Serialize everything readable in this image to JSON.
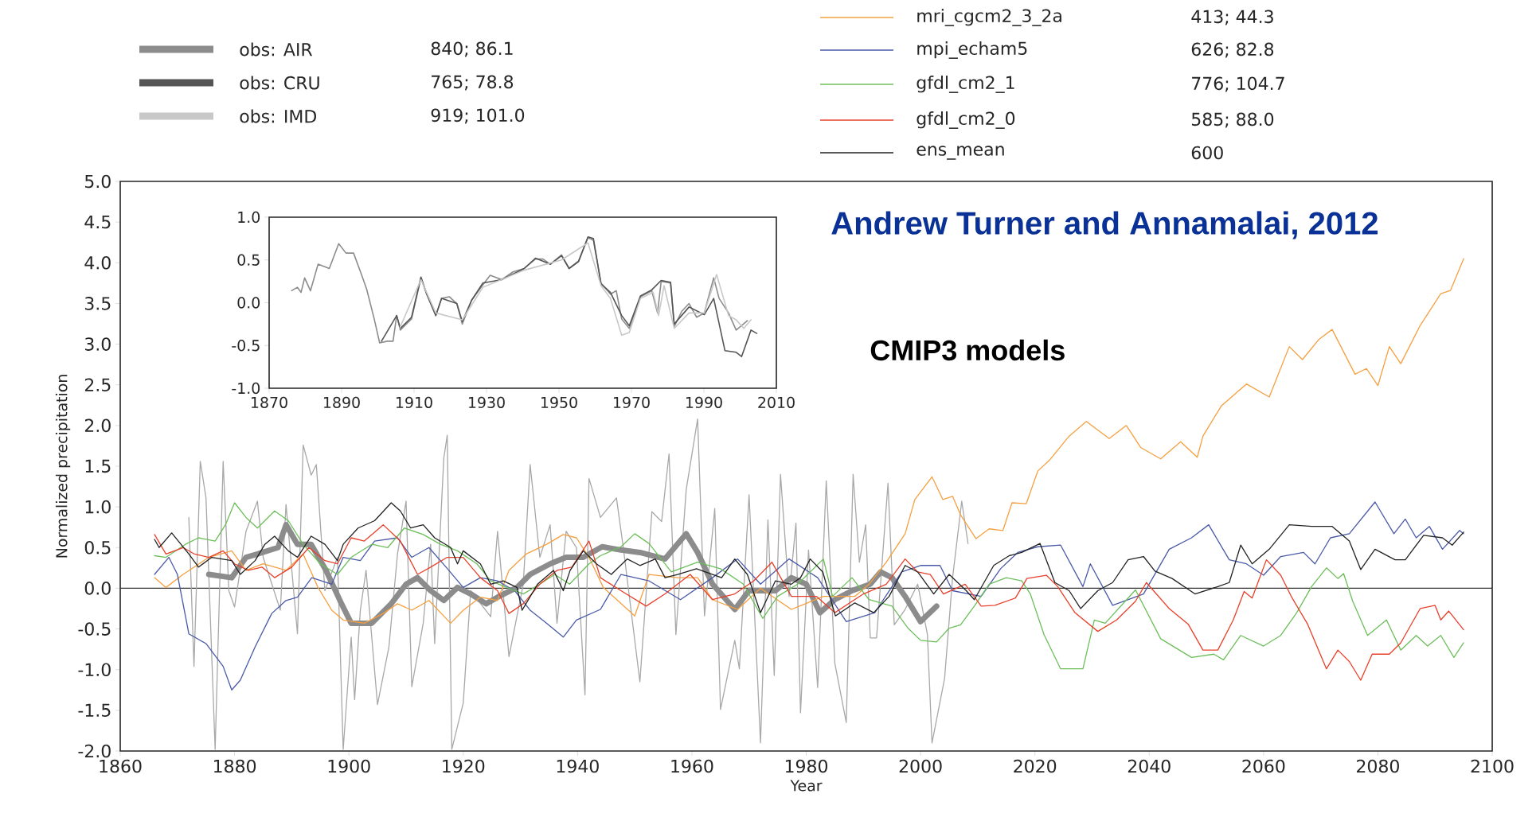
{
  "chart_data": [
    {
      "type": "line",
      "xlabel": "Year",
      "ylabel": "Normalized precipitation",
      "xlim": [
        1860,
        2100
      ],
      "ylim": [
        -2,
        5
      ],
      "xticks": [
        1860,
        1880,
        1900,
        1920,
        1940,
        1960,
        1980,
        2000,
        2020,
        2040,
        2060,
        2080,
        2100
      ],
      "yticks": [
        {
          "value": -2,
          "label": "-2.0"
        },
        {
          "value": -1.5,
          "label": "-1.5"
        },
        {
          "value": -1,
          "label": "-1.0"
        },
        {
          "value": -0.5,
          "label": "-0.5"
        },
        {
          "value": 0,
          "label": "0.0"
        },
        {
          "value": 0.5,
          "label": "0.5"
        },
        {
          "value": 1,
          "label": "1.0"
        },
        {
          "value": 1.5,
          "label": "1.5"
        },
        {
          "value": 2,
          "label": "2.0"
        },
        {
          "value": 2.5,
          "label": "2.5"
        },
        {
          "value": 3,
          "label": "3.0"
        },
        {
          "value": 3.5,
          "label": "3.5"
        },
        {
          "value": 4,
          "label": "4.0"
        },
        {
          "value": 4.5,
          "label": "4.5"
        },
        {
          "value": 5,
          "label": "5.0"
        }
      ],
      "legend": "top",
      "ref_lines": [
        {
          "axis": "y",
          "value": 0,
          "color": "#333333"
        }
      ],
      "annotations": [
        "Andrew Turner and Annamalai, 2012",
        "CMIP3 models",
        "413;  44.3",
        "626;  82.8",
        "776;  104.7",
        "585;  88.0",
        "600"
      ],
      "series": [
        {
          "color": "#a8a8a8",
          "x": [
            1872,
            1872.9,
            1874,
            1875,
            1876.6,
            1878,
            1879,
            1880,
            1882,
            1884,
            1885,
            1888,
            1889,
            1891,
            1892,
            1893.4,
            1894.3,
            1895.8,
            1898,
            1899,
            1900.4,
            1901,
            1902,
            1903,
            1905,
            1907,
            1908.5,
            1910,
            1911,
            1913,
            1914.3,
            1915,
            1916.6,
            1917.2,
            1918,
            1920,
            1921.3,
            1924.8,
            1926,
            1928,
            1930.5,
            1931.7,
            1933.4,
            1935.2,
            1936.4,
            1938,
            1939.8,
            1941.3,
            1942,
            1944,
            1946.8,
            1948,
            1950.9,
            1953,
            1954.7,
            1956,
            1957.2,
            1959,
            1961,
            1962.2,
            1964,
            1965,
            1967.5,
            1968.3,
            1970,
            1972,
            1973.3,
            1974.4,
            1975.5,
            1977,
            1978.2,
            1979,
            1980.4,
            1982,
            1983.5,
            1985,
            1987,
            1988.2,
            1989.3,
            1990.4,
            1991.2,
            1992.3,
            1994.3,
            1995.4,
            1997.3,
            1999.5,
            2001.2,
            2002,
            2004.2,
            2005.6,
            2007.2,
            2008.3
          ],
          "values": [
            0.87,
            -0.96,
            1.56,
            1.11,
            -1.98,
            1.56,
            -0.03,
            -0.23,
            0.7,
            1.07,
            0.38,
            -0.27,
            1.03,
            -0.56,
            1.76,
            1.39,
            1.52,
            -0.03,
            0.38,
            -1.98,
            -0.6,
            -1.37,
            -0.27,
            0.22,
            -1.43,
            -0.72,
            0.42,
            1.07,
            -1.21,
            -0.43,
            0.54,
            -0.68,
            1.6,
            1.88,
            -1.98,
            -1.41,
            -0.03,
            -0.35,
            0.7,
            -0.84,
            0.05,
            1.52,
            0.38,
            0.78,
            -0.43,
            0.7,
            0.5,
            -1.31,
            1.35,
            0.87,
            1.11,
            0.5,
            -1.15,
            0.94,
            0.82,
            1.65,
            -0.57,
            1.21,
            2.08,
            -0.34,
            0.98,
            -1.49,
            -0.64,
            -0.99,
            1.15,
            -1.9,
            0.84,
            -1.07,
            1.4,
            -0.1,
            0.8,
            -1.53,
            0.47,
            -1.22,
            1.32,
            -0.92,
            -1.65,
            1.4,
            0.32,
            0.78,
            -0.61,
            -0.61,
            1.29,
            -0.45,
            -0.26,
            0.05,
            -0.57,
            -1.9,
            -1.11,
            0.13,
            1.07,
            0.55
          ]
        },
        {
          "color": "#8c8c8c",
          "x": [
            1875.5,
            1879.5,
            1882,
            1884,
            1887.6,
            1889,
            1891,
            1893.4,
            1896,
            1898.7,
            1900.4,
            1904,
            1907.4,
            1910,
            1912,
            1914.3,
            1916.6,
            1919,
            1921.3,
            1924,
            1926,
            1929.4,
            1931.7,
            1935.2,
            1938,
            1941,
            1944.3,
            1947.6,
            1950.9,
            1955.3,
            1959,
            1961,
            1963.6,
            1967.5,
            1970,
            1974.6,
            1977.4,
            1980,
            1982.4,
            1985,
            1988,
            1991.2,
            1993,
            1995,
            1997.3,
            2000,
            2002.8
          ],
          "values": [
            0.17,
            0.13,
            0.38,
            0.42,
            0.5,
            0.78,
            0.54,
            0.54,
            0.22,
            -0.19,
            -0.43,
            -0.43,
            -0.19,
            0.05,
            0.13,
            -0.03,
            -0.15,
            0.01,
            -0.07,
            -0.19,
            -0.11,
            0.01,
            0.17,
            0.3,
            0.38,
            0.38,
            0.51,
            0.47,
            0.44,
            0.36,
            0.67,
            0.44,
            0.05,
            -0.26,
            -0.03,
            -0.03,
            0.13,
            0.05,
            -0.3,
            -0.14,
            -0.03,
            0.05,
            0.2,
            0.13,
            -0.1,
            -0.41,
            -0.22
          ]
        },
        {
          "name": "mri_cgcm2_3_2a",
          "color": "#f5a040",
          "x": [
            1866,
            1868,
            1871,
            1875.5,
            1879.5,
            1882,
            1885,
            1889,
            1892,
            1894.6,
            1897,
            1899,
            1902.7,
            1906,
            1908.5,
            1911,
            1914,
            1917.8,
            1920,
            1923,
            1926,
            1928,
            1931,
            1934.6,
            1937.5,
            1939.8,
            1942,
            1944.5,
            1950,
            1952.5,
            1957.5,
            1961,
            1963.6,
            1968,
            1972,
            1977.4,
            1983,
            1988.5,
            1991,
            1994,
            1997.3,
            1999,
            2002,
            2003.9,
            2005.6,
            2007,
            2009.7,
            2012,
            2014.4,
            2016,
            2018.5,
            2020.5,
            2022.5,
            2026,
            2029,
            2033,
            2036,
            2038.5,
            2042,
            2045.5,
            2048.4,
            2049.4,
            2052.6,
            2057,
            2061,
            2064.5,
            2066.8,
            2069.7,
            2072,
            2076,
            2078,
            2080,
            2082,
            2084,
            2087.4,
            2091,
            2092.7,
            2095
          ],
          "values": [
            0.13,
            0.01,
            0.17,
            0.38,
            0.46,
            0.22,
            0.3,
            0.22,
            0.42,
            0.01,
            -0.27,
            -0.39,
            -0.43,
            -0.31,
            -0.19,
            -0.27,
            -0.15,
            -0.43,
            -0.27,
            -0.11,
            -0.15,
            0.22,
            0.42,
            0.54,
            0.66,
            0.62,
            0.38,
            0.01,
            -0.34,
            0.17,
            0.13,
            0.13,
            -0.14,
            -0.26,
            0.0,
            -0.26,
            -0.1,
            -0.1,
            0.05,
            0.32,
            0.67,
            1.09,
            1.37,
            1.09,
            1.13,
            0.9,
            0.61,
            0.73,
            0.71,
            1.05,
            1.04,
            1.44,
            1.57,
            1.87,
            2.05,
            1.84,
            2.0,
            1.73,
            1.59,
            1.8,
            1.61,
            1.87,
            2.24,
            2.51,
            2.35,
            2.97,
            2.81,
            3.06,
            3.18,
            2.63,
            2.7,
            2.49,
            2.97,
            2.76,
            3.23,
            3.62,
            3.66,
            4.05
          ]
        },
        {
          "name": "mpi_echam5",
          "color": "#4a5aa8",
          "x": [
            1866,
            1868.5,
            1870,
            1872,
            1875,
            1878,
            1879.5,
            1881,
            1883.6,
            1886.5,
            1889,
            1891,
            1893.5,
            1897,
            1899,
            1902,
            1904.5,
            1908.5,
            1911,
            1914,
            1917,
            1920,
            1923,
            1926,
            1929,
            1931.7,
            1934.6,
            1937.5,
            1939.8,
            1944,
            1947.6,
            1952.5,
            1958,
            1963.6,
            1968,
            1972,
            1977,
            1982,
            1987,
            1992,
            1996.7,
            2000,
            2003.4,
            2005.6,
            2010.6,
            2014,
            2017,
            2020.5,
            2024.5,
            2028.4,
            2029.7,
            2033.6,
            2039,
            2043.5,
            2047.4,
            2050.4,
            2054,
            2057,
            2060,
            2063,
            2067,
            2069,
            2071.7,
            2075,
            2079.5,
            2082.8,
            2084.8,
            2086.7,
            2089,
            2091.3,
            2094.3,
            2095
          ],
          "values": [
            0.17,
            0.38,
            0.17,
            -0.56,
            -0.68,
            -0.96,
            -1.25,
            -1.13,
            -0.72,
            -0.31,
            -0.15,
            -0.11,
            0.13,
            0.05,
            0.38,
            0.34,
            0.58,
            0.62,
            0.38,
            0.5,
            0.26,
            0.01,
            0.13,
            0.09,
            -0.03,
            -0.27,
            -0.43,
            -0.6,
            -0.39,
            -0.26,
            0.17,
            0.09,
            -0.14,
            0.13,
            0.36,
            0.05,
            0.36,
            0.13,
            -0.41,
            -0.3,
            0.2,
            0.28,
            0.28,
            -0.03,
            -0.1,
            0.24,
            0.44,
            0.51,
            0.53,
            0.02,
            0.3,
            -0.21,
            -0.07,
            0.48,
            0.62,
            0.78,
            0.35,
            0.3,
            0.16,
            0.39,
            0.44,
            0.3,
            0.62,
            0.67,
            1.06,
            0.67,
            0.85,
            0.62,
            0.76,
            0.48,
            0.71,
            0.67
          ]
        },
        {
          "name": "gfdl_cm2_1",
          "color": "#6cbf5a",
          "x": [
            1866,
            1868,
            1871.4,
            1873.7,
            1876.6,
            1878.4,
            1880,
            1882,
            1884,
            1887,
            1889.4,
            1892,
            1895,
            1898,
            1900.4,
            1904,
            1906.8,
            1909.7,
            1913,
            1916,
            1919,
            1922.4,
            1924.8,
            1927.6,
            1930.5,
            1933.4,
            1936,
            1938.6,
            1942,
            1944,
            1947.6,
            1950,
            1952.5,
            1956.4,
            1961,
            1965,
            1969,
            1972.4,
            1975,
            1978.5,
            1983,
            1984.6,
            1988,
            1991,
            1995,
            1997.8,
            2000,
            2002.8,
            2005,
            2007,
            2009.4,
            2012,
            2015,
            2017.7,
            2019.2,
            2021.6,
            2024.5,
            2028.4,
            2030.4,
            2032.3,
            2037.6,
            2042,
            2047.4,
            2051.3,
            2053,
            2056,
            2060,
            2063,
            2065.8,
            2068.4,
            2071,
            2073,
            2074,
            2075.6,
            2078.2,
            2081.5,
            2084,
            2086.7,
            2088.7,
            2091,
            2093.3,
            2095
          ],
          "values": [
            0.4,
            0.38,
            0.54,
            0.62,
            0.58,
            0.78,
            1.05,
            0.87,
            0.74,
            0.95,
            0.83,
            0.54,
            0.3,
            0.17,
            0.38,
            0.54,
            0.5,
            0.74,
            0.66,
            0.54,
            0.46,
            0.3,
            0.09,
            0.01,
            -0.07,
            0.05,
            0.17,
            0.05,
            0.3,
            0.4,
            0.51,
            0.67,
            0.55,
            0.2,
            0.32,
            0.24,
            0.05,
            -0.37,
            -0.1,
            0.05,
            0.36,
            -0.1,
            0.13,
            -0.14,
            -0.22,
            -0.49,
            -0.64,
            -0.66,
            -0.49,
            -0.45,
            -0.22,
            0.05,
            0.13,
            0.09,
            -0.07,
            -0.57,
            -0.99,
            -0.99,
            -0.39,
            -0.43,
            -0.02,
            -0.62,
            -0.85,
            -0.81,
            -0.88,
            -0.58,
            -0.71,
            -0.58,
            -0.3,
            0.02,
            0.25,
            0.12,
            0.18,
            -0.16,
            -0.58,
            -0.39,
            -0.76,
            -0.58,
            -0.71,
            -0.58,
            -0.85,
            -0.67
          ]
        },
        {
          "name": "gfdl_cm2_0",
          "color": "#e8402a",
          "x": [
            1866,
            1868,
            1871,
            1873,
            1875.5,
            1878,
            1880,
            1882.4,
            1884.8,
            1887,
            1890,
            1893,
            1895.8,
            1898,
            1900.4,
            1902.7,
            1906,
            1909,
            1912,
            1914.3,
            1917.2,
            1920,
            1923,
            1926,
            1928,
            1930.5,
            1933.4,
            1936.4,
            1939,
            1942,
            1944,
            1947.6,
            1952,
            1955.3,
            1959.7,
            1963.6,
            1967.5,
            1970.8,
            1974,
            1977.4,
            1981.8,
            1985,
            1990,
            1994,
            1997.3,
            1999.5,
            2001.7,
            2004,
            2007.8,
            2010.6,
            2013,
            2016.6,
            2018.6,
            2022,
            2024,
            2027,
            2031,
            2034.3,
            2037.6,
            2039.5,
            2043.5,
            2046.8,
            2049.4,
            2052,
            2054.7,
            2056.6,
            2058,
            2060.5,
            2063,
            2065,
            2067.7,
            2071,
            2073,
            2075,
            2077,
            2079,
            2082,
            2084,
            2087.4,
            2090,
            2091,
            2092.4,
            2095
          ],
          "values": [
            0.66,
            0.42,
            0.5,
            0.42,
            0.38,
            0.46,
            0.3,
            0.22,
            0.26,
            0.13,
            0.26,
            0.5,
            0.34,
            0.3,
            0.62,
            0.58,
            0.78,
            0.58,
            0.17,
            0.26,
            0.38,
            0.38,
            0.13,
            -0.03,
            -0.31,
            -0.19,
            0.05,
            0.22,
            0.26,
            0.58,
            0.13,
            -0.03,
            -0.22,
            -0.07,
            0.17,
            -0.14,
            -0.07,
            0.09,
            0.32,
            -0.1,
            -0.1,
            -0.3,
            -0.07,
            0.05,
            0.36,
            0.2,
            0.17,
            -0.07,
            0.05,
            -0.22,
            -0.21,
            -0.12,
            0.12,
            0.16,
            0.02,
            -0.3,
            -0.53,
            -0.39,
            -0.16,
            0.07,
            -0.25,
            -0.44,
            -0.76,
            -0.76,
            -0.39,
            -0.04,
            -0.12,
            0.35,
            0.16,
            -0.12,
            -0.44,
            -0.99,
            -0.76,
            -0.9,
            -1.13,
            -0.81,
            -0.81,
            -0.67,
            -0.25,
            -0.21,
            -0.39,
            -0.28,
            -0.51
          ]
        },
        {
          "name": "ens_mean",
          "color": "#222222",
          "x": [
            1866,
            1866.8,
            1869,
            1872,
            1873.7,
            1876,
            1879.5,
            1881,
            1883.6,
            1885.3,
            1887,
            1889.4,
            1891,
            1893.4,
            1895.8,
            1898,
            1899,
            1901.6,
            1904.5,
            1907.4,
            1909,
            1910.8,
            1913,
            1915,
            1917.8,
            1919,
            1920,
            1923,
            1924.8,
            1927,
            1929.4,
            1930.3,
            1933,
            1935.8,
            1937.5,
            1938.7,
            1941,
            1943.3,
            1945.9,
            1948.7,
            1950.9,
            1953.6,
            1955.3,
            1957.5,
            1960.8,
            1965.2,
            1967.5,
            1969.7,
            1972,
            1974.6,
            1977.4,
            1979,
            1980.7,
            1982.9,
            1985.1,
            1988.5,
            1991.8,
            1994.5,
            1997.3,
            1999.5,
            2002.3,
            2005,
            2008,
            2009.4,
            2012.8,
            2015.5,
            2017.7,
            2020.9,
            2023.5,
            2026,
            2028,
            2031,
            2033.6,
            2036.3,
            2039,
            2041,
            2044,
            2048,
            2052,
            2054,
            2056,
            2058,
            2061,
            2064.5,
            2068.4,
            2072,
            2075,
            2077,
            2079.5,
            2083,
            2084.8,
            2088,
            2091.3,
            2093,
            2095
          ],
          "values": [
            0.6,
            0.5,
            0.68,
            0.42,
            0.26,
            0.38,
            0.34,
            0.17,
            0.34,
            0.54,
            0.64,
            0.46,
            0.38,
            0.64,
            0.54,
            0.34,
            0.54,
            0.74,
            0.83,
            1.05,
            0.95,
            0.74,
            0.78,
            0.62,
            0.5,
            0.3,
            0.46,
            0.3,
            0.05,
            0.09,
            0.01,
            -0.27,
            0.05,
            0.22,
            -0.03,
            0.22,
            0.46,
            0.3,
            0.17,
            0.36,
            0.28,
            0.36,
            0.13,
            0.17,
            0.24,
            0.13,
            0.36,
            0.17,
            -0.3,
            0.09,
            0.05,
            0.13,
            0.36,
            0.2,
            -0.34,
            -0.18,
            -0.3,
            -0.1,
            0.28,
            0.2,
            -0.07,
            0.17,
            -0.03,
            -0.14,
            0.28,
            0.4,
            0.44,
            0.55,
            0.07,
            -0.03,
            -0.25,
            -0.03,
            0.07,
            0.35,
            0.39,
            0.21,
            0.12,
            -0.07,
            0.02,
            0.07,
            0.53,
            0.3,
            0.48,
            0.78,
            0.76,
            0.76,
            0.58,
            0.23,
            0.48,
            0.35,
            0.35,
            0.65,
            0.62,
            0.53,
            0.69
          ]
        }
      ]
    },
    {
      "type": "line",
      "xlim": [
        1870,
        2010
      ],
      "ylim": [
        -1,
        1
      ],
      "xticks": [
        1870,
        1890,
        1910,
        1930,
        1950,
        1970,
        1990,
        2010
      ],
      "yticks": [
        {
          "value": -1,
          "label": "-1.0"
        },
        {
          "value": -0.5,
          "label": "-0.5"
        },
        {
          "value": 0,
          "label": "0.0"
        },
        {
          "value": 0.5,
          "label": "0.5"
        },
        {
          "value": 1,
          "label": "1.0"
        }
      ],
      "legend": "top",
      "annotations": [
        "840; 86.1",
        "765; 78.8",
        "919; 101.0"
      ],
      "series": [
        {
          "name": "obs: AIR",
          "color": "#8c8c8c",
          "x": [
            1876.2,
            1877.8,
            1878.8,
            1879.8,
            1881.4,
            1883.5,
            1886.6,
            1889.2,
            1891.2,
            1893.3,
            1895.4,
            1896.9,
            1899,
            1900.5,
            1902.6,
            1904.2,
            1905.2,
            1906.2,
            1909.3,
            1911.9,
            1913.5,
            1916,
            1917.6,
            1919.7,
            1921.8,
            1923.3,
            1925.9,
            1929,
            1931,
            1934.2,
            1937.3,
            1940.4,
            1943.5,
            1945.6,
            1947.6,
            1950.7,
            1952.8,
            1955.4,
            1958,
            1959.5,
            1961.6,
            1964.2,
            1965.8,
            1967.3,
            1969.4,
            1972.5,
            1975.6,
            1977.2,
            1978.2,
            1980.8,
            1981.8,
            1983.9,
            1985.9,
            1988,
            1990.1,
            1992.7,
            1994.2,
            1996.8,
            1998.9,
            2002
          ],
          "values": [
            0.14,
            0.18,
            0.12,
            0.29,
            0.14,
            0.45,
            0.4,
            0.69,
            0.58,
            0.58,
            0.34,
            0.16,
            -0.19,
            -0.47,
            -0.45,
            -0.45,
            -0.15,
            -0.32,
            -0.19,
            0.29,
            0.1,
            -0.15,
            0.05,
            0.07,
            -0.01,
            -0.25,
            0.03,
            0.21,
            0.32,
            0.27,
            0.36,
            0.4,
            0.51,
            0.51,
            0.45,
            0.56,
            0.4,
            0.49,
            0.76,
            0.73,
            0.23,
            0.1,
            0.14,
            -0.19,
            -0.3,
            0.07,
            0.14,
            -0.12,
            0.25,
            0.23,
            -0.28,
            -0.1,
            -0.01,
            -0.17,
            -0.12,
            0.29,
            0.05,
            -0.12,
            -0.32,
            -0.21
          ]
        },
        {
          "name": "obs: CRU",
          "color": "#555555",
          "x": [
            1901,
            1905.2,
            1906.2,
            1909.3,
            1911.9,
            1913.5,
            1916,
            1917.6,
            1921.8,
            1923.3,
            1925.9,
            1929,
            1934.2,
            1940.4,
            1943.5,
            1947.6,
            1950.7,
            1952.8,
            1955.4,
            1958,
            1959.5,
            1961.6,
            1964.2,
            1967.3,
            1969.4,
            1972.5,
            1975.6,
            1978.2,
            1980.8,
            1981.8,
            1985.9,
            1990.1,
            1992.7,
            1995.8,
            1998.9,
            2000.4,
            2003,
            2004.6
          ],
          "values": [
            -0.45,
            -0.15,
            -0.3,
            -0.17,
            0.3,
            0.1,
            -0.15,
            0.05,
            -0.01,
            -0.22,
            0.03,
            0.23,
            0.27,
            0.4,
            0.52,
            0.45,
            0.55,
            0.4,
            0.48,
            0.77,
            0.75,
            0.22,
            0.12,
            -0.15,
            -0.27,
            0.08,
            0.15,
            0.26,
            0.24,
            -0.25,
            -0.05,
            -0.14,
            0.05,
            -0.56,
            -0.58,
            -0.63,
            -0.32,
            -0.36
          ]
        },
        {
          "name": "obs: IMD",
          "color": "#c8c8c8",
          "x": [
            1906,
            1911.9,
            1916,
            1923.3,
            1929,
            1940.4,
            1950.7,
            1958,
            1961.6,
            1964.2,
            1967.3,
            1969.4,
            1972.5,
            1976,
            1977.5,
            1979,
            1981.8,
            1985.9,
            1990.1,
            1993.5,
            1996.8,
            1998.9,
            2001,
            2003
          ],
          "values": [
            -0.3,
            0.27,
            -0.12,
            -0.2,
            0.18,
            0.38,
            0.5,
            0.7,
            0.2,
            0.05,
            -0.38,
            -0.35,
            0.05,
            0.12,
            -0.15,
            0.2,
            -0.3,
            -0.12,
            -0.12,
            0.33,
            -0.15,
            -0.2,
            -0.3,
            -0.2
          ]
        }
      ]
    }
  ]
}
